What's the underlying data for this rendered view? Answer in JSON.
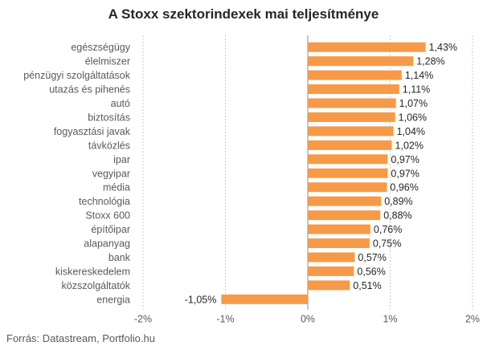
{
  "chart_data": {
    "type": "bar",
    "orientation": "horizontal",
    "title": "A Stoxx szektorindexek mai teljesítménye",
    "source": "Forrás: Datastream, Portfolio.hu",
    "categories": [
      "egészségügy",
      "élelmiszer",
      "pénzügyi szolgáltatások",
      "utazás és pihenés",
      "autó",
      "biztosítás",
      "fogyasztási javak",
      "távközlés",
      "ipar",
      "vegyipar",
      "média",
      "technológia",
      "Stoxx 600",
      "építőipar",
      "alapanyag",
      "bank",
      "kiskereskedelem",
      "közszolgáltatók",
      "energia"
    ],
    "values": [
      1.43,
      1.28,
      1.14,
      1.11,
      1.07,
      1.06,
      1.04,
      1.02,
      0.97,
      0.97,
      0.96,
      0.89,
      0.88,
      0.76,
      0.75,
      0.57,
      0.56,
      0.51,
      -1.05
    ],
    "value_labels": [
      "1,43%",
      "1,28%",
      "1,14%",
      "1,11%",
      "1,07%",
      "1,06%",
      "1,04%",
      "1,02%",
      "0,97%",
      "0,97%",
      "0,96%",
      "0,89%",
      "0,88%",
      "0,76%",
      "0,75%",
      "0,57%",
      "0,56%",
      "0,51%",
      "-1,05%"
    ],
    "xlim": [
      -2,
      2
    ],
    "xticks": [
      -2,
      -1,
      0,
      1,
      2
    ],
    "xtick_labels": [
      "-2%",
      "-1%",
      "0%",
      "1%",
      "2%"
    ],
    "grid": "vertical dashed",
    "legend": "none",
    "bar_color": "#F79A48",
    "grid_color": "#BFBFBF"
  }
}
